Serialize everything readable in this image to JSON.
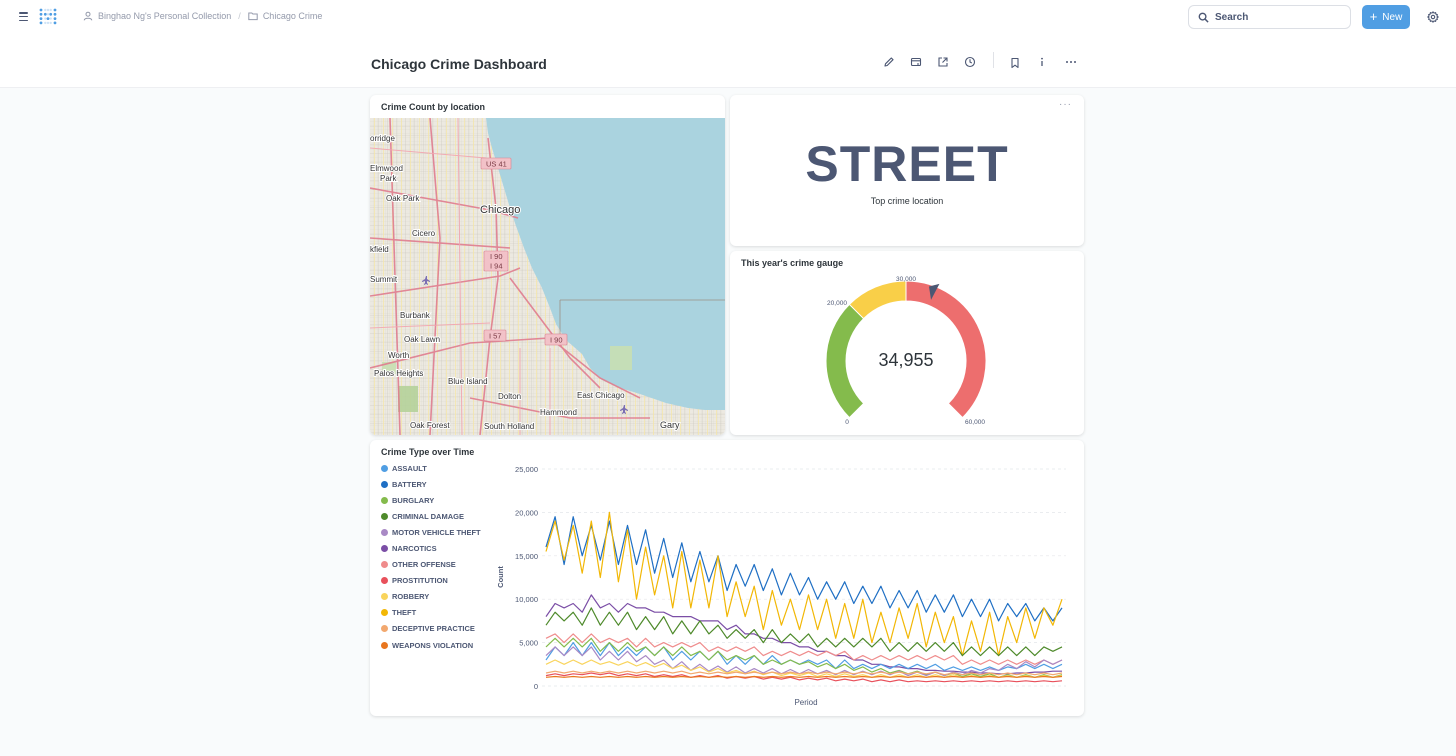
{
  "nav": {
    "collection": "Binghao Ng's Personal Collection",
    "separator": "/",
    "folder": "Chicago Crime",
    "search_label": "Search",
    "new_label": "New"
  },
  "dashboard": {
    "title": "Chicago Crime Dashboard",
    "toolbar_icons": [
      "pencil-icon",
      "share-icon",
      "export-icon",
      "clock-icon",
      "bookmark-icon",
      "info-icon",
      "more-icon"
    ]
  },
  "map_card": {
    "title": "Crime Count by location",
    "labels": [
      "orridge",
      "Elmwood",
      "Park",
      "Oak Park",
      "Chicago",
      "Cicero",
      "kfield",
      "Summit",
      "Burbank",
      "Oak Lawn",
      "Worth",
      "Palos Heights",
      "Blue Island",
      "Dolton",
      "East Chicago",
      "Hammond",
      "Oak Forest",
      "South Holland",
      "Gary"
    ],
    "shields": [
      "US 41",
      "I 90",
      "I 94",
      "I 57",
      "I 90"
    ]
  },
  "scalar_card": {
    "value": "STREET",
    "label": "Top crime location",
    "menu": "···"
  },
  "gauge_card": {
    "title": "This year's crime gauge",
    "value": "34,955",
    "value_num": 34955,
    "min": 0,
    "max": 60000,
    "segments": [
      {
        "from": 0,
        "to": 20000,
        "color": "#84bb4c"
      },
      {
        "from": 20000,
        "to": 30000,
        "color": "#f9cf48"
      },
      {
        "from": 30000,
        "to": 60000,
        "color": "#ed6e6e"
      }
    ],
    "tick_labels": [
      "0",
      "20,000",
      "30,000",
      "60,000"
    ]
  },
  "line_card": {
    "title": "Crime Type over Time",
    "legend": [
      {
        "name": "ASSAULT",
        "color": "#509ee3"
      },
      {
        "name": "BATTERY",
        "color": "#1f6fc4"
      },
      {
        "name": "BURGLARY",
        "color": "#84bb4c"
      },
      {
        "name": "CRIMINAL DAMAGE",
        "color": "#4e8a2b"
      },
      {
        "name": "MOTOR VEHICLE THEFT",
        "color": "#a989c5"
      },
      {
        "name": "NARCOTICS",
        "color": "#7b4ea6"
      },
      {
        "name": "OTHER OFFENSE",
        "color": "#ef8c8c"
      },
      {
        "name": "PROSTITUTION",
        "color": "#e8505b"
      },
      {
        "name": "ROBBERY",
        "color": "#f9d45c"
      },
      {
        "name": "THEFT",
        "color": "#f2b705"
      },
      {
        "name": "DECEPTIVE PRACTICE",
        "color": "#f2a86f"
      },
      {
        "name": "WEAPONS VIOLATION",
        "color": "#e8761f"
      }
    ]
  },
  "chart_data": {
    "type": "line",
    "title": "Crime Type over Time",
    "xlabel": "Period",
    "ylabel": "Count",
    "ylim": [
      0,
      25000
    ],
    "yticks": [
      "0",
      "5,000",
      "10,000",
      "15,000",
      "20,000",
      "25,000"
    ],
    "grid": "horizontal dashed",
    "legend": "left",
    "series": [
      {
        "name": "BATTERY",
        "values": [
          16000,
          19500,
          14000,
          19500,
          15000,
          18500,
          14500,
          19000,
          14000,
          18500,
          14000,
          18000,
          13000,
          17000,
          12500,
          16500,
          12000,
          15500,
          12000,
          15000,
          11000,
          14000,
          11500,
          14000,
          11000,
          13500,
          10500,
          13000,
          10500,
          12500,
          10000,
          12000,
          10000,
          12000,
          9500,
          11500,
          9500,
          11500,
          9000,
          11000,
          9000,
          11000,
          8500,
          10500,
          8500,
          10500,
          8000,
          10000,
          8000,
          10000,
          7500,
          9500,
          8000,
          9500,
          7500,
          9000,
          7500,
          9000
        ]
      },
      {
        "name": "THEFT",
        "values": [
          15500,
          19000,
          14500,
          18500,
          13000,
          19000,
          12500,
          20000,
          12000,
          18000,
          10000,
          16000,
          10500,
          15000,
          9000,
          15500,
          9000,
          14500,
          9000,
          15000,
          8000,
          12000,
          8000,
          11500,
          6500,
          11000,
          7000,
          10000,
          6500,
          10500,
          6500,
          10000,
          5500,
          9500,
          5500,
          10000,
          5000,
          8500,
          5000,
          9000,
          5500,
          9500,
          4500,
          8500,
          5000,
          8000,
          3500,
          7500,
          4000,
          8500,
          3500,
          8000,
          5000,
          9000,
          5500,
          9000,
          7000,
          10000
        ]
      },
      {
        "name": "NARCOTICS",
        "values": [
          8000,
          9500,
          9000,
          9500,
          8500,
          10500,
          9000,
          9500,
          8500,
          9500,
          9000,
          9000,
          8500,
          8500,
          8000,
          8000,
          8000,
          7500,
          7500,
          7500,
          6500,
          7000,
          6000,
          6000,
          5500,
          5500,
          5000,
          5000,
          4500,
          4500,
          4000,
          4000,
          3500,
          3500,
          3000,
          3000,
          2500,
          2500,
          2200,
          2200,
          2000,
          2000,
          1800,
          1800,
          1700,
          1700,
          1600,
          1600,
          1500,
          1500,
          1400,
          1400,
          1500,
          1500,
          1600,
          1600,
          1700,
          1700
        ]
      },
      {
        "name": "CRIMINAL DAMAGE",
        "values": [
          7000,
          8500,
          7500,
          8500,
          7000,
          9000,
          7000,
          8500,
          7000,
          8500,
          6500,
          8000,
          6500,
          8000,
          6000,
          7500,
          6000,
          7500,
          6000,
          7000,
          5500,
          6500,
          5500,
          6500,
          5000,
          6500,
          5000,
          6000,
          5000,
          6000,
          4500,
          5500,
          4500,
          5500,
          4500,
          5500,
          4500,
          5500,
          4000,
          5000,
          4000,
          5000,
          4000,
          5000,
          4000,
          5000,
          3500,
          4500,
          3500,
          4500,
          3500,
          4500,
          3500,
          4500,
          3500,
          4500,
          4000,
          4500
        ]
      },
      {
        "name": "OTHER OFFENSE",
        "values": [
          5500,
          6000,
          5000,
          6000,
          5000,
          6000,
          5000,
          5500,
          5000,
          5500,
          4500,
          5500,
          4500,
          5000,
          4500,
          5000,
          4500,
          5000,
          4000,
          4500,
          4000,
          4500,
          4000,
          4500,
          3500,
          4000,
          3500,
          4000,
          3500,
          4000,
          3500,
          4000,
          3500,
          4000,
          3000,
          3500,
          3000,
          3500,
          3000,
          3500,
          3000,
          3500,
          3000,
          3500,
          3000,
          3500,
          2500,
          3000,
          2500,
          3000,
          2500,
          3000,
          2500,
          3000,
          2500,
          3000,
          2500,
          3000
        ]
      },
      {
        "name": "ASSAULT",
        "values": [
          3000,
          4500,
          3500,
          5000,
          3500,
          5000,
          3500,
          5000,
          3500,
          4500,
          3500,
          4500,
          3500,
          4500,
          3000,
          4000,
          3000,
          4000,
          3000,
          4000,
          2500,
          3500,
          2500,
          3500,
          2500,
          3500,
          2500,
          3000,
          2500,
          3000,
          2500,
          3000,
          2000,
          3000,
          2000,
          2500,
          2000,
          2500,
          2000,
          2500,
          2000,
          2500,
          2000,
          2500,
          1800,
          2200,
          1800,
          2200,
          1800,
          2200,
          1800,
          2200,
          2000,
          2500,
          2000,
          2500,
          2000,
          2500
        ]
      },
      {
        "name": "BURGLARY",
        "values": [
          4500,
          5500,
          4500,
          5500,
          4500,
          5500,
          4000,
          5000,
          4000,
          5000,
          4000,
          4500,
          3500,
          4500,
          3500,
          4500,
          3500,
          4000,
          3000,
          4000,
          3000,
          3500,
          3000,
          3500,
          2500,
          3000,
          2500,
          3000,
          2500,
          2800,
          2200,
          2600,
          2000,
          2500,
          1800,
          2200,
          1600,
          2000,
          1500,
          1800,
          1400,
          1700,
          1300,
          1600,
          1200,
          1500,
          1100,
          1400,
          1100,
          1400,
          1000,
          1300,
          1000,
          1300,
          1000,
          1300,
          1000,
          1300
        ]
      },
      {
        "name": "MOTOR VEHICLE THEFT",
        "values": [
          3500,
          4500,
          3500,
          4500,
          3500,
          4500,
          3000,
          4000,
          3000,
          4000,
          2800,
          3500,
          2500,
          3000,
          2000,
          2800,
          1800,
          2500,
          1700,
          2300,
          1600,
          2200,
          1500,
          2000,
          1500,
          2000,
          1400,
          1900,
          1400,
          1900,
          1400,
          1800,
          1300,
          1800,
          1300,
          1700,
          1300,
          1700,
          1300,
          1700,
          1200,
          1600,
          1200,
          1600,
          1200,
          1600,
          1300,
          1800,
          1500,
          2000,
          1800,
          2500,
          2000,
          2800,
          2200,
          3000,
          2500,
          3000
        ]
      },
      {
        "name": "ROBBERY",
        "values": [
          2500,
          3000,
          2500,
          3000,
          2500,
          3000,
          2500,
          2800,
          2400,
          2800,
          2300,
          2700,
          2200,
          2600,
          2000,
          2400,
          1800,
          2200,
          1600,
          2000,
          1500,
          1800,
          1400,
          1700,
          1300,
          1600,
          1200,
          1500,
          1200,
          1500,
          1100,
          1400,
          1100,
          1400,
          1100,
          1300,
          1000,
          1300,
          1000,
          1300,
          1000,
          1300,
          1000,
          1300,
          1000,
          1300,
          1000,
          1200,
          1000,
          1200,
          1000,
          1200,
          1000,
          1200,
          1000,
          1200,
          1000,
          1200
        ]
      },
      {
        "name": "DECEPTIVE PRACTICE",
        "values": [
          1500,
          1700,
          1500,
          1700,
          1500,
          1700,
          1500,
          1700,
          1500,
          1700,
          1500,
          1700,
          1500,
          1700,
          1500,
          1700,
          1400,
          1600,
          1400,
          1600,
          1400,
          1600,
          1400,
          1600,
          1400,
          1600,
          1400,
          1600,
          1400,
          1600,
          1400,
          1600,
          1400,
          1600,
          1400,
          1600,
          1400,
          1600,
          1400,
          1600,
          1400,
          1600,
          1400,
          1600,
          1300,
          1500,
          1300,
          1500,
          1300,
          1500,
          1300,
          1500,
          1300,
          1500,
          1300,
          1500,
          1300,
          1500
        ]
      },
      {
        "name": "PROSTITUTION",
        "values": [
          1200,
          1400,
          1200,
          1400,
          1300,
          1500,
          1300,
          1500,
          1200,
          1400,
          1200,
          1400,
          1100,
          1300,
          1100,
          1300,
          1000,
          1200,
          1000,
          1200,
          900,
          1100,
          900,
          1100,
          800,
          1000,
          800,
          1000,
          700,
          900,
          700,
          900,
          600,
          800,
          600,
          800,
          500,
          700,
          500,
          700,
          500,
          600,
          500,
          600,
          500,
          600,
          500,
          600,
          500,
          600,
          500,
          600,
          500,
          600,
          500,
          600,
          500,
          600
        ]
      },
      {
        "name": "WEAPONS VIOLATION",
        "values": [
          1000,
          1100,
          1000,
          1100,
          1000,
          1100,
          1000,
          1100,
          1000,
          1100,
          1000,
          1100,
          1000,
          1100,
          1000,
          1100,
          1000,
          1100,
          1000,
          1100,
          1000,
          1100,
          1000,
          1100,
          1000,
          1100,
          1000,
          1100,
          1000,
          1100,
          1000,
          1100,
          1000,
          1100,
          1000,
          1100,
          1000,
          1100,
          1000,
          1100,
          1000,
          1100,
          1000,
          1100,
          1000,
          1100,
          1000,
          1100,
          1000,
          1100,
          1000,
          1100,
          1000,
          1100,
          1000,
          1100,
          1000,
          1100
        ]
      }
    ]
  }
}
